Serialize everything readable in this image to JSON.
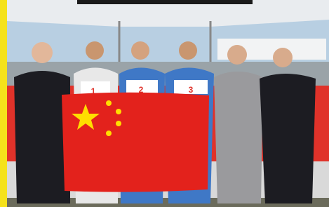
{
  "photo": {
    "bib_numbers": [
      "1",
      "2",
      "3"
    ]
  }
}
